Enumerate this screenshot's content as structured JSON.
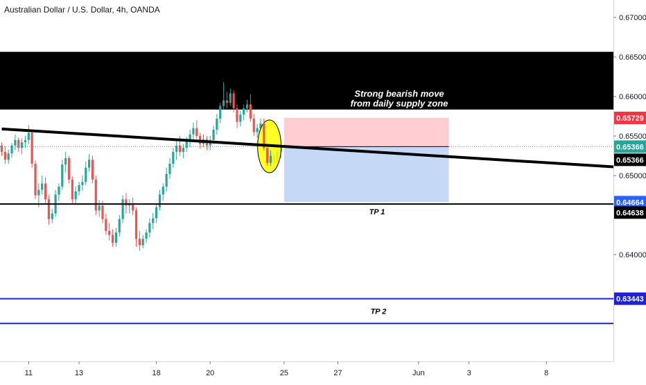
{
  "header": {
    "title": "Australian Dollar / U.S. Dollar, 4h, OANDA"
  },
  "chart_data": {
    "type": "candlestick",
    "y_axis": {
      "ticks": [
        "0.67000",
        "0.66500",
        "0.66000",
        "0.65500",
        "0.65000",
        "0.64000"
      ],
      "tick_values": [
        0.67,
        0.665,
        0.66,
        0.655,
        0.65,
        0.64
      ],
      "ylim": [
        0.6265,
        0.6722
      ],
      "position": "right"
    },
    "x_axis": {
      "ticks": [
        "11",
        "13",
        "18",
        "20",
        "25",
        "27",
        "Jun",
        "3",
        "8"
      ],
      "tick_bars": [
        8,
        23,
        46,
        62,
        84,
        100,
        124,
        139,
        162
      ]
    },
    "price_badges": [
      {
        "value": "0.65729",
        "price": 0.65729,
        "bg": "#f23645",
        "color": "#ffffff"
      },
      {
        "value": "0.65366",
        "price": 0.65366,
        "bg": "#26a69a",
        "color": "#ffffff",
        "label": "last"
      },
      {
        "value": "0.65366",
        "price": 0.65366,
        "bg": "#000000",
        "color": "#ffffff",
        "label": "trendline",
        "offset": 19
      },
      {
        "value": "0.64664",
        "price": 0.64664,
        "bg": "#2962ff",
        "color": "#ffffff"
      },
      {
        "value": "0.64638",
        "price": 0.64638,
        "bg": "#000000",
        "color": "#ffffff",
        "offset": 12
      },
      {
        "value": "0.63443",
        "price": 0.63443,
        "bg": "#1e22d4",
        "color": "#ffffff"
      }
    ],
    "supply_zone": {
      "top": 0.66565,
      "bottom": 0.65835,
      "color": "#000000"
    },
    "annotation": {
      "lines": [
        "Strong bearish move",
        "from daily supply zone"
      ],
      "color": "#ffffff"
    },
    "trendline": {
      "from": [
        0,
        0.6559
      ],
      "to": [
        173,
        0.6511
      ],
      "color": "#000000"
    },
    "tp1": {
      "label": "TP 1",
      "price": 0.6464
    },
    "tp2": {
      "label": "TP 2",
      "lines": [
        0.63443,
        0.6313
      ],
      "color": "#1e22d4"
    },
    "short_position": {
      "from_bar": 84,
      "to_bar": 133,
      "stop": 0.65729,
      "entry": 0.65366,
      "target": 0.64664
    },
    "highlight_bar": 79,
    "candles": [
      [
        0.6538,
        0.6542,
        0.6525,
        0.653
      ],
      [
        0.653,
        0.6537,
        0.6515,
        0.652
      ],
      [
        0.652,
        0.6533,
        0.6515,
        0.6528
      ],
      [
        0.6528,
        0.6541,
        0.6523,
        0.6538
      ],
      [
        0.6538,
        0.6552,
        0.6532,
        0.6545
      ],
      [
        0.6545,
        0.6548,
        0.653,
        0.6535
      ],
      [
        0.6535,
        0.6547,
        0.6527,
        0.6542
      ],
      [
        0.6542,
        0.655,
        0.6535,
        0.6545
      ],
      [
        0.6545,
        0.6564,
        0.654,
        0.6554
      ],
      [
        0.6554,
        0.6556,
        0.651,
        0.6515
      ],
      [
        0.6515,
        0.6519,
        0.647,
        0.6475
      ],
      [
        0.6475,
        0.649,
        0.646,
        0.6482
      ],
      [
        0.6482,
        0.65,
        0.6476,
        0.649
      ],
      [
        0.649,
        0.6498,
        0.6465,
        0.647
      ],
      [
        0.647,
        0.6476,
        0.6438,
        0.6445
      ],
      [
        0.6445,
        0.6458,
        0.644,
        0.6452
      ],
      [
        0.6452,
        0.6482,
        0.6448,
        0.6476
      ],
      [
        0.6476,
        0.649,
        0.6468,
        0.6486
      ],
      [
        0.6486,
        0.652,
        0.6482,
        0.6514
      ],
      [
        0.6514,
        0.653,
        0.6504,
        0.6522
      ],
      [
        0.6522,
        0.6525,
        0.649,
        0.6495
      ],
      [
        0.6495,
        0.6499,
        0.6465,
        0.647
      ],
      [
        0.647,
        0.6486,
        0.6465,
        0.648
      ],
      [
        0.648,
        0.6492,
        0.6475,
        0.6488
      ],
      [
        0.6488,
        0.65,
        0.6481,
        0.6492
      ],
      [
        0.6492,
        0.6518,
        0.6488,
        0.651
      ],
      [
        0.651,
        0.6527,
        0.6505,
        0.652
      ],
      [
        0.652,
        0.6525,
        0.649,
        0.6495
      ],
      [
        0.6495,
        0.65,
        0.645,
        0.6456
      ],
      [
        0.6456,
        0.6469,
        0.6448,
        0.6462
      ],
      [
        0.6462,
        0.6468,
        0.644,
        0.6445
      ],
      [
        0.6445,
        0.6452,
        0.6425,
        0.643
      ],
      [
        0.643,
        0.644,
        0.6418,
        0.6425
      ],
      [
        0.6425,
        0.6432,
        0.641,
        0.6415
      ],
      [
        0.6415,
        0.6434,
        0.641,
        0.6428
      ],
      [
        0.6428,
        0.645,
        0.6423,
        0.6445
      ],
      [
        0.6445,
        0.6475,
        0.644,
        0.647
      ],
      [
        0.647,
        0.6478,
        0.6452,
        0.6462
      ],
      [
        0.6462,
        0.647,
        0.6452,
        0.6465
      ],
      [
        0.6465,
        0.6472,
        0.645,
        0.6456
      ],
      [
        0.6456,
        0.646,
        0.641,
        0.642
      ],
      [
        0.642,
        0.643,
        0.6405,
        0.6412
      ],
      [
        0.6412,
        0.6425,
        0.6408,
        0.642
      ],
      [
        0.642,
        0.6432,
        0.6415,
        0.6428
      ],
      [
        0.6428,
        0.6446,
        0.6422,
        0.644
      ],
      [
        0.644,
        0.6453,
        0.6432,
        0.6446
      ],
      [
        0.6446,
        0.6465,
        0.644,
        0.646
      ],
      [
        0.646,
        0.6482,
        0.6456,
        0.6476
      ],
      [
        0.6476,
        0.649,
        0.6468,
        0.6486
      ],
      [
        0.6486,
        0.651,
        0.648,
        0.6502
      ],
      [
        0.6502,
        0.6522,
        0.6496,
        0.6515
      ],
      [
        0.6515,
        0.6535,
        0.651,
        0.653
      ],
      [
        0.653,
        0.6545,
        0.652,
        0.6538
      ],
      [
        0.6538,
        0.655,
        0.6525,
        0.653
      ],
      [
        0.653,
        0.654,
        0.6522,
        0.6535
      ],
      [
        0.6535,
        0.6549,
        0.653,
        0.6544
      ],
      [
        0.6544,
        0.6558,
        0.6536,
        0.6552
      ],
      [
        0.6552,
        0.6567,
        0.6545,
        0.656
      ],
      [
        0.656,
        0.657,
        0.6546,
        0.655
      ],
      [
        0.655,
        0.6554,
        0.6534,
        0.654
      ],
      [
        0.654,
        0.6552,
        0.6536,
        0.6546
      ],
      [
        0.6546,
        0.655,
        0.6532,
        0.6538
      ],
      [
        0.6538,
        0.655,
        0.6532,
        0.6545
      ],
      [
        0.6545,
        0.6563,
        0.654,
        0.6558
      ],
      [
        0.6558,
        0.6578,
        0.6552,
        0.6572
      ],
      [
        0.6572,
        0.6592,
        0.6566,
        0.6588
      ],
      [
        0.6588,
        0.6618,
        0.6584,
        0.6595
      ],
      [
        0.6595,
        0.6606,
        0.6585,
        0.6592
      ],
      [
        0.6592,
        0.661,
        0.6588,
        0.6604
      ],
      [
        0.6604,
        0.6608,
        0.658,
        0.6585
      ],
      [
        0.6585,
        0.659,
        0.656,
        0.6568
      ],
      [
        0.6568,
        0.6582,
        0.6562,
        0.6577
      ],
      [
        0.6577,
        0.659,
        0.657,
        0.6585
      ],
      [
        0.6585,
        0.6596,
        0.658,
        0.659
      ],
      [
        0.659,
        0.6603,
        0.6568,
        0.6572
      ],
      [
        0.6572,
        0.6578,
        0.655,
        0.6555
      ],
      [
        0.6555,
        0.6565,
        0.6548,
        0.656
      ],
      [
        0.656,
        0.6572,
        0.6554,
        0.6566
      ],
      [
        0.6566,
        0.6572,
        0.6532,
        0.6535
      ],
      [
        0.6535,
        0.654,
        0.6512,
        0.6516
      ],
      [
        0.6516,
        0.6532,
        0.6512,
        0.6525
      ],
      [
        0.6525,
        0.6528,
        0.6508,
        0.6516
      ],
      [
        0.6516,
        0.6538,
        0.6512,
        0.653
      ],
      [
        0.653,
        0.6545,
        0.6522,
        0.6537
      ]
    ],
    "colors": {
      "up": "#26a69a",
      "down": "#ef5350",
      "highlight": "#ffff00",
      "position_stop": "#ffcdd2",
      "position_target": "#c5d8f5"
    }
  }
}
